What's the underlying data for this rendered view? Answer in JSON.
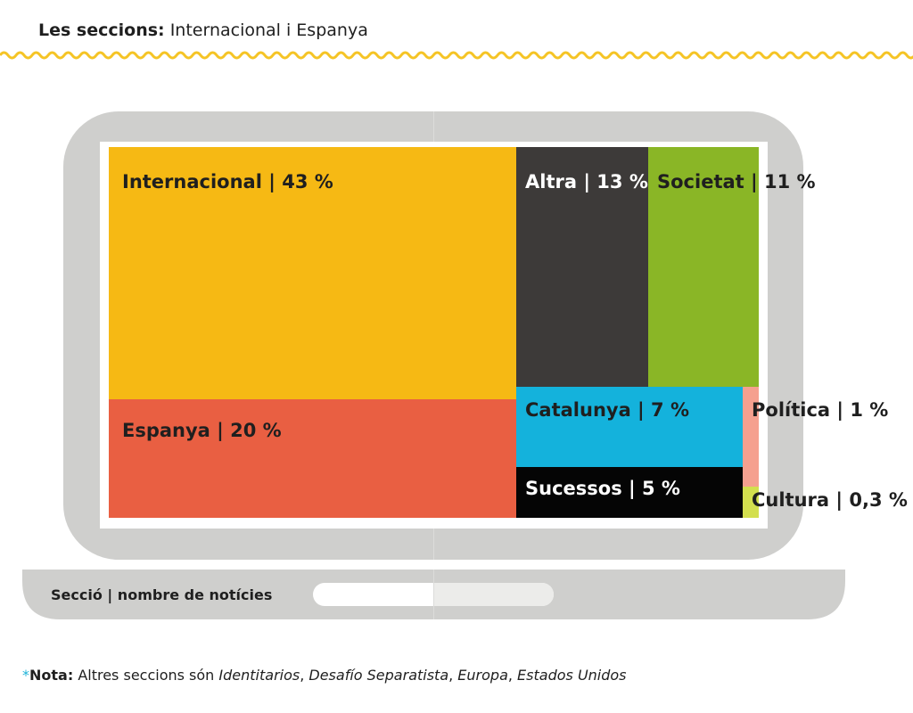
{
  "header": {
    "prefix": "Les seccions:",
    "title": "Internacional i Espanya"
  },
  "chart_data": {
    "type": "treemap",
    "title": "Les seccions: Internacional i Espanya",
    "unit": "%",
    "items": [
      {
        "name": "Internacional",
        "value": 43,
        "value_label": "43 %",
        "color": "#f6b914"
      },
      {
        "name": "Espanya",
        "value": 20,
        "value_label": "20 %",
        "color": "#e95f42"
      },
      {
        "name": "Altra",
        "value": 13,
        "value_label": "13 %",
        "color": "#3d3a39"
      },
      {
        "name": "Societat",
        "value": 11,
        "value_label": "11 %",
        "color": "#8ab626"
      },
      {
        "name": "Catalunya",
        "value": 7,
        "value_label": "7 %",
        "color": "#14b2dc"
      },
      {
        "name": "Sucessos",
        "value": 5,
        "value_label": "5 %",
        "color": "#050505"
      },
      {
        "name": "Política",
        "value": 1,
        "value_label": "1 %",
        "color": "#f5a08f"
      },
      {
        "name": "Cultura",
        "value": 0.3,
        "value_label": "0,3 %",
        "color": "#d3df4e"
      }
    ]
  },
  "legend": {
    "text": "Secció | nombre de notícies"
  },
  "footnote": {
    "star": "*",
    "label": "Nota:",
    "text": " Altres seccions són ",
    "items": [
      "Identitarios",
      "Desafío Separatista",
      "Europa",
      "Estados Unidos"
    ]
  },
  "colors": {
    "laptop": "#cfcfcd",
    "laptop_divider": "#dcdcda",
    "trackpad": "#ffffff",
    "trackpad_right": "#ececea",
    "wave": "#f5c425",
    "accent": "#1eb3d8"
  }
}
